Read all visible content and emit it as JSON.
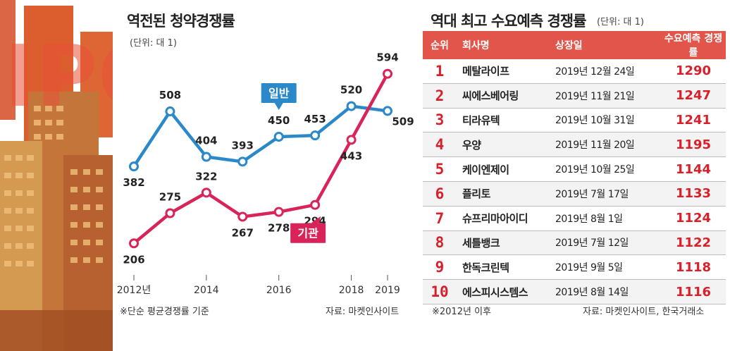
{
  "illustration": {
    "text": "IPO"
  },
  "left_chart": {
    "title": "역전된 청약경쟁률",
    "unit": "(단위: 대 1)",
    "footnote": "※단순 평균경쟁률 기준",
    "source": "자료: 마켓인사이트"
  },
  "right_table": {
    "title": "역대 최고 수요예측 경쟁률",
    "unit": "(단위: 대 1)",
    "headers": {
      "rank": "순위",
      "company": "회사명",
      "date": "상장일",
      "ratio": "수요예측 경쟁률"
    },
    "rows": [
      {
        "rank": "1",
        "company": "메탈라이프",
        "date": "2019년 12월 24일",
        "ratio": "1290"
      },
      {
        "rank": "2",
        "company": "씨에스베어링",
        "date": "2019년 11월 21일",
        "ratio": "1247"
      },
      {
        "rank": "3",
        "company": "티라유텍",
        "date": "2019년 10월 31일",
        "ratio": "1241"
      },
      {
        "rank": "4",
        "company": "우양",
        "date": "2019년 11월 20일",
        "ratio": "1195"
      },
      {
        "rank": "5",
        "company": "케이엔제이",
        "date": "2019년 10월 25일",
        "ratio": "1144"
      },
      {
        "rank": "6",
        "company": "플리토",
        "date": "2019년 7월 17일",
        "ratio": "1133"
      },
      {
        "rank": "7",
        "company": "슈프리마아이디",
        "date": "2019년 8월 1일",
        "ratio": "1124"
      },
      {
        "rank": "8",
        "company": "세틀뱅크",
        "date": "2019년 7월 12일",
        "ratio": "1122"
      },
      {
        "rank": "9",
        "company": "한독크린텍",
        "date": "2019년 9월 5일",
        "ratio": "1118"
      },
      {
        "rank": "10",
        "company": "에스피시스템스",
        "date": "2019년 8월 14일",
        "ratio": "1116"
      }
    ],
    "footnote": "※2012년 이후",
    "source": "자료: 마켓인사이트, 한국거래소"
  },
  "chart_data": {
    "type": "line",
    "title": "역전된 청약경쟁률",
    "ylabel": "(단위: 대 1)",
    "x": [
      2012,
      2013,
      2014,
      2015,
      2016,
      2017,
      2018,
      2019
    ],
    "x_tick_labels": [
      {
        "x": 2012,
        "label": "2012년"
      },
      {
        "x": 2014,
        "label": "2014"
      },
      {
        "x": 2016,
        "label": "2016"
      },
      {
        "x": 2018,
        "label": "2018"
      },
      {
        "x": 2019,
        "label": "2019"
      }
    ],
    "ylim": [
      150,
      650
    ],
    "series": [
      {
        "name": "일반",
        "color": "#2b88c9",
        "values": [
          382,
          508,
          404,
          393,
          450,
          453,
          520,
          509
        ]
      },
      {
        "name": "기관",
        "color": "#d9245a",
        "values": [
          206,
          275,
          322,
          267,
          278,
          294,
          443,
          594
        ]
      }
    ],
    "grid": false,
    "legend": "inline callouts"
  }
}
